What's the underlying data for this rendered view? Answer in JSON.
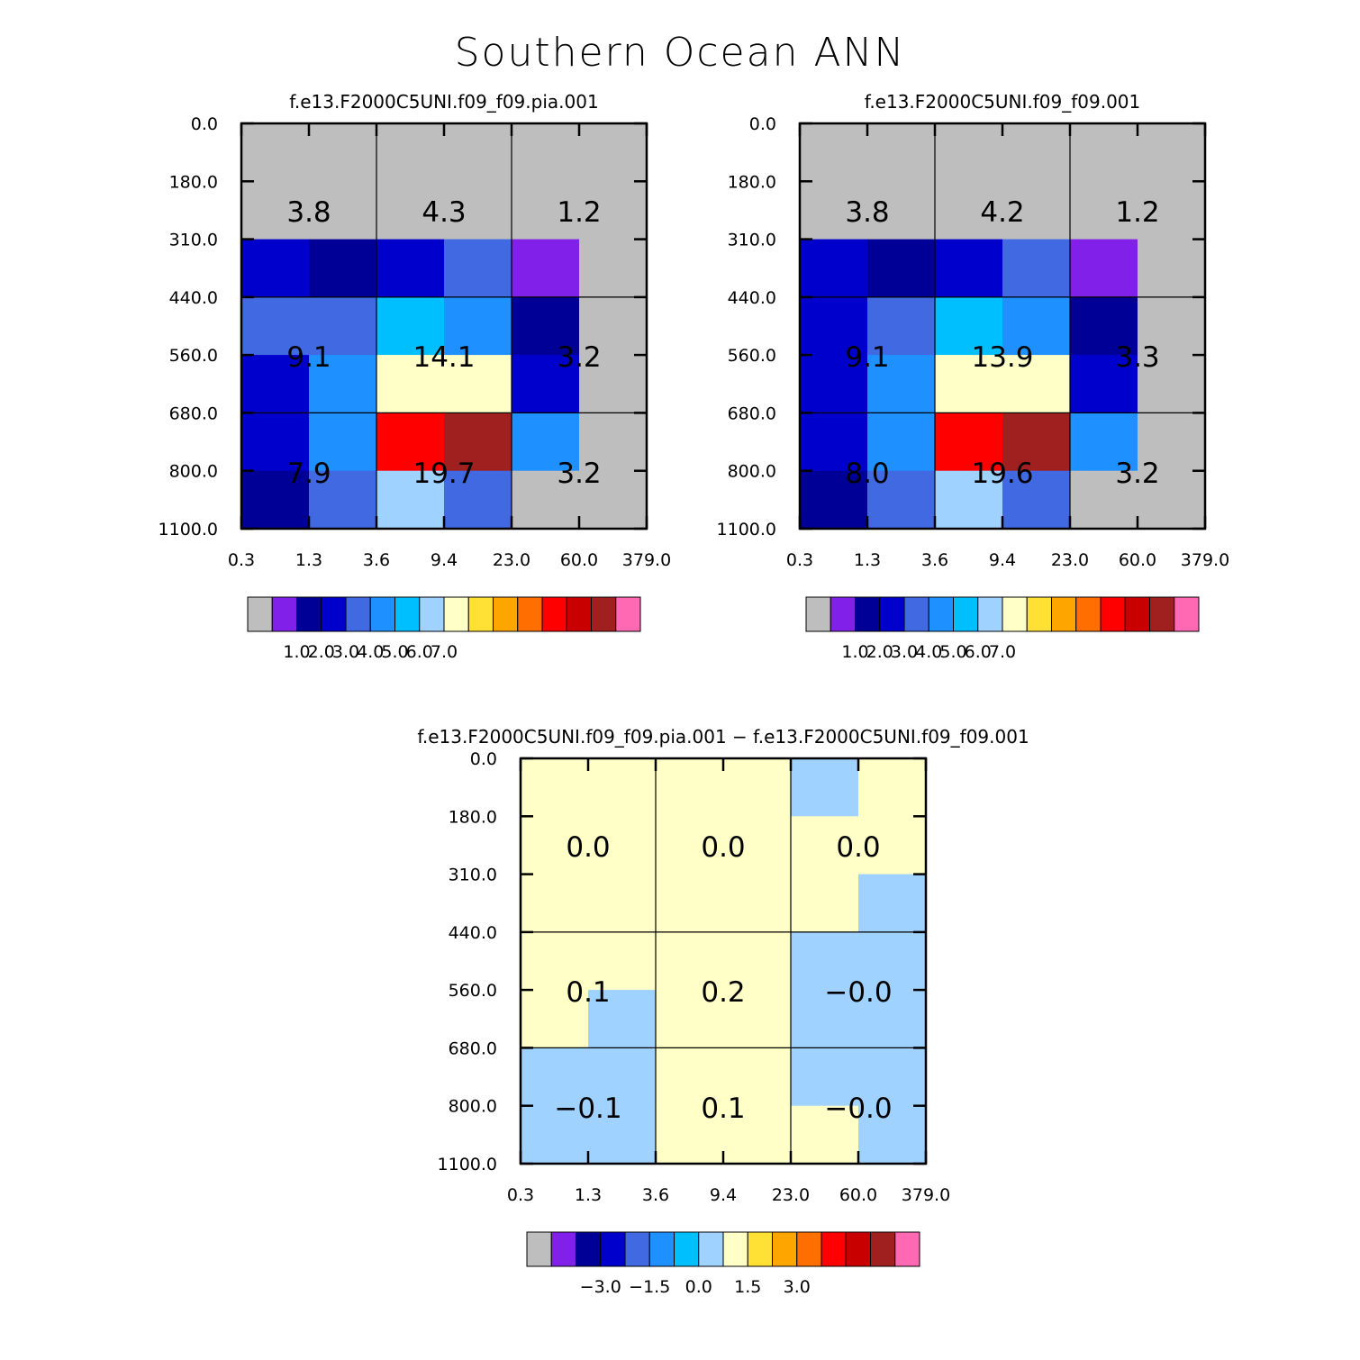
{
  "chart_data": {
    "type": "heatmap",
    "title": "Southern Ocean ANN",
    "x_tick_labels": [
      "0.3",
      "1.3",
      "3.6",
      "9.4",
      "23.0",
      "60.0",
      "379.0"
    ],
    "y_tick_labels": [
      "0.0",
      "180.0",
      "310.0",
      "440.0",
      "560.0",
      "680.0",
      "800.0",
      "1100.0"
    ],
    "palette": [
      "#bebebe",
      "#8020e8",
      "#000096",
      "#0000cd",
      "#4169e1",
      "#1e90ff",
      "#00bfff",
      "#a0d2ff",
      "#ffffc8",
      "#ffe135",
      "#ffa500",
      "#ff6e00",
      "#ff0000",
      "#c80000",
      "#a02020",
      "#ff69b4"
    ],
    "panels": [
      {
        "title": "f.e13.F2000C5UNI.f09_f09.pia.001",
        "colorbar_labels": [
          "1.0",
          "2.0",
          "3.0",
          "4.0",
          "5.0",
          "6.0",
          "7.0"
        ],
        "colorbar_label_boxes": [
          1,
          2,
          3,
          4,
          5,
          6,
          7
        ],
        "grid": [
          [
            0,
            0,
            0,
            0,
            0,
            0
          ],
          [
            0,
            0,
            0,
            0,
            0,
            0
          ],
          [
            3,
            2,
            3,
            4,
            1,
            0
          ],
          [
            4,
            4,
            6,
            5,
            2,
            0
          ],
          [
            3,
            5,
            8,
            8,
            3,
            0
          ],
          [
            3,
            5,
            12,
            14,
            5,
            0
          ],
          [
            2,
            4,
            7,
            4,
            0,
            0
          ]
        ],
        "summary": [
          [
            "3.8",
            "4.3",
            "1.2"
          ],
          [
            "9.1",
            "14.1",
            "3.2"
          ],
          [
            "7.9",
            "19.7",
            "3.2"
          ]
        ]
      },
      {
        "title": "f.e13.F2000C5UNI.f09_f09.001",
        "colorbar_labels": [
          "1.0",
          "2.0",
          "3.0",
          "4.0",
          "5.0",
          "6.0",
          "7.0"
        ],
        "colorbar_label_boxes": [
          1,
          2,
          3,
          4,
          5,
          6,
          7
        ],
        "grid": [
          [
            0,
            0,
            0,
            0,
            0,
            0
          ],
          [
            0,
            0,
            0,
            0,
            0,
            0
          ],
          [
            3,
            2,
            3,
            4,
            1,
            0
          ],
          [
            3,
            4,
            6,
            5,
            2,
            0
          ],
          [
            3,
            5,
            8,
            8,
            3,
            0
          ],
          [
            3,
            5,
            12,
            14,
            5,
            0
          ],
          [
            2,
            4,
            7,
            4,
            0,
            0
          ]
        ],
        "summary": [
          [
            "3.8",
            "4.2",
            "1.2"
          ],
          [
            "9.1",
            "13.9",
            "3.3"
          ],
          [
            "8.0",
            "19.6",
            "3.2"
          ]
        ]
      },
      {
        "title": "f.e13.F2000C5UNI.f09_f09.pia.001 − f.e13.F2000C5UNI.f09_f09.001",
        "colorbar_labels": [
          "−3.0",
          "−1.5",
          "0.0",
          "1.5",
          "3.0"
        ],
        "colorbar_label_boxes": [
          2,
          4,
          6,
          8,
          10
        ],
        "grid": [
          [
            8,
            8,
            8,
            8,
            7,
            8
          ],
          [
            8,
            8,
            8,
            8,
            8,
            8
          ],
          [
            8,
            8,
            8,
            8,
            8,
            7
          ],
          [
            8,
            8,
            8,
            8,
            7,
            7
          ],
          [
            8,
            7,
            8,
            8,
            7,
            7
          ],
          [
            7,
            7,
            8,
            8,
            7,
            7
          ],
          [
            7,
            7,
            8,
            8,
            8,
            7
          ]
        ],
        "summary": [
          [
            "0.0",
            "0.0",
            "0.0"
          ],
          [
            "0.1",
            "0.2",
            "−0.0"
          ],
          [
            "−0.1",
            "0.1",
            "−0.0"
          ]
        ]
      }
    ]
  }
}
